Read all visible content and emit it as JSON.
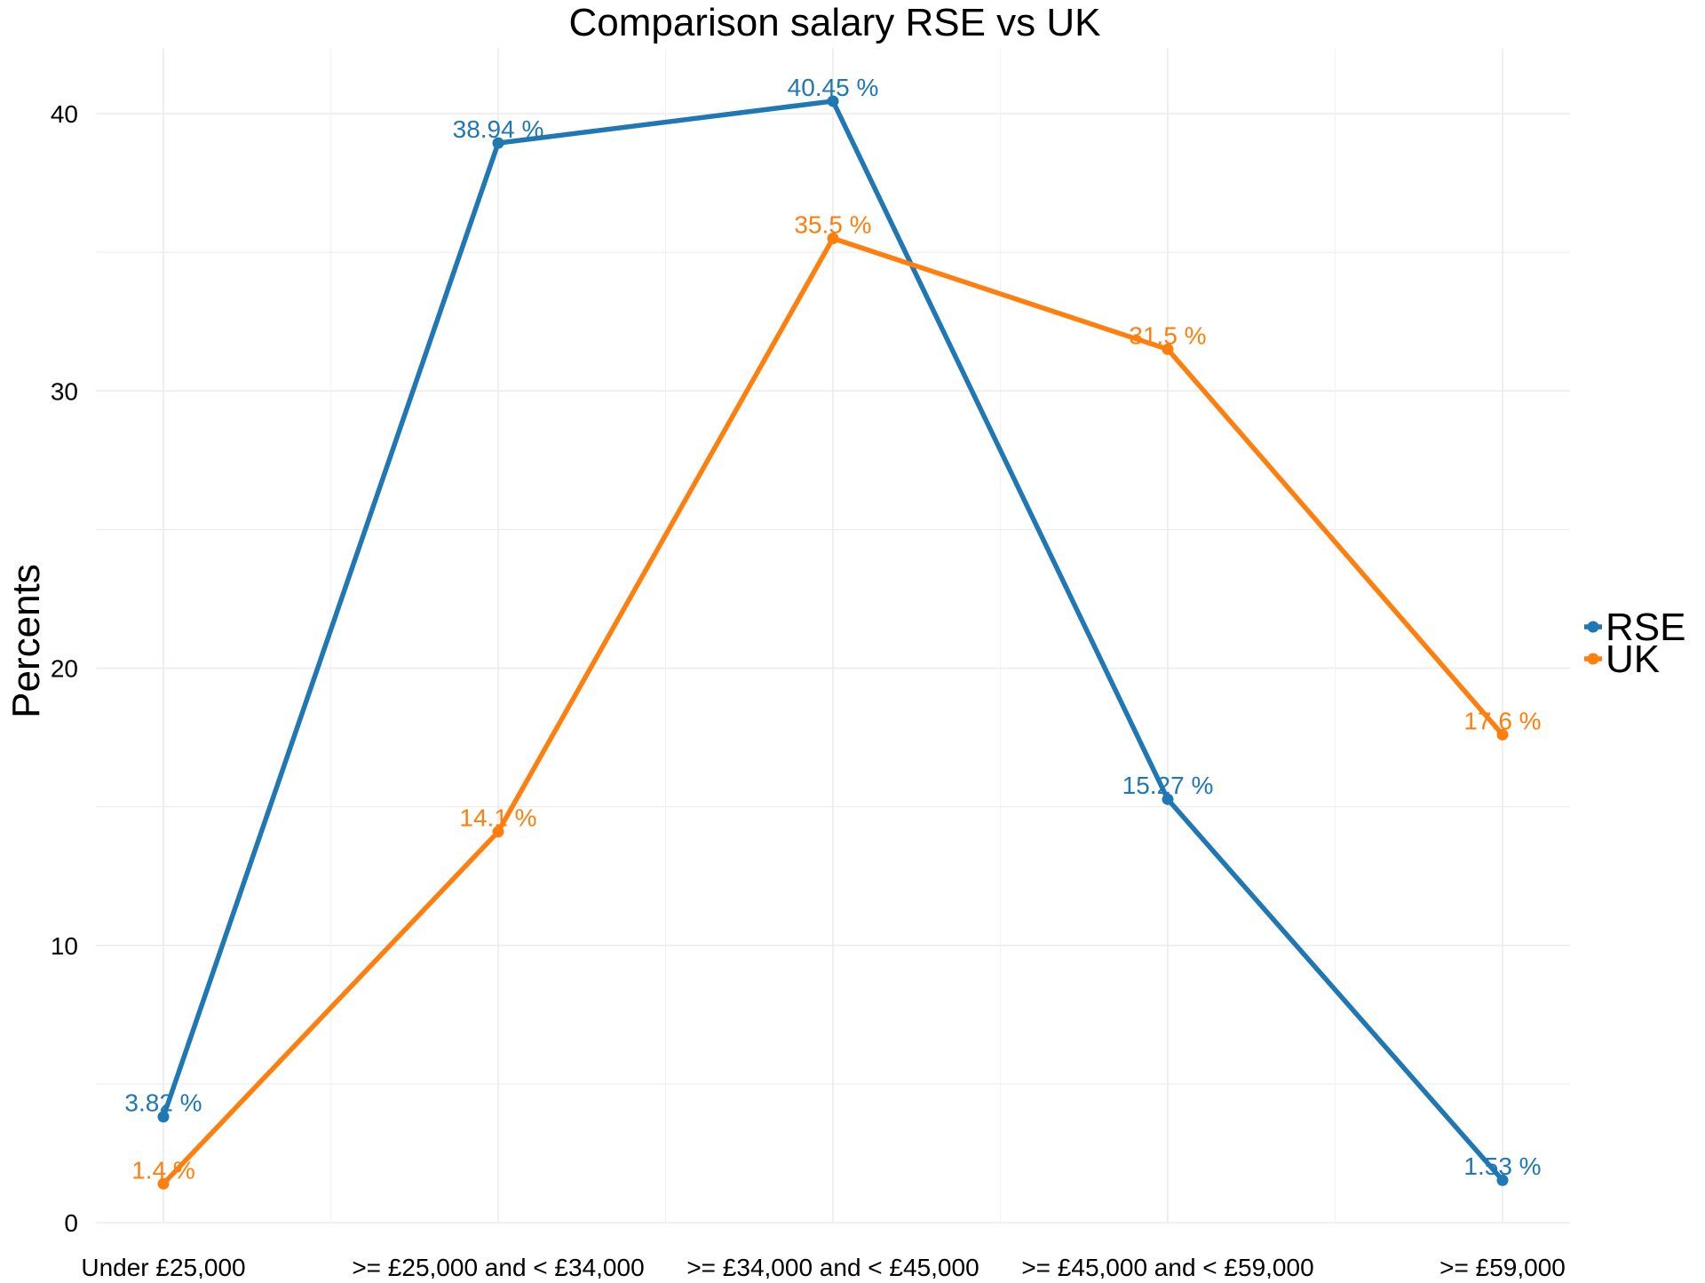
{
  "chart_data": {
    "type": "line",
    "title": "Comparison salary RSE vs UK",
    "xlabel": "",
    "ylabel": "Percents",
    "categories": [
      "Under £25,000",
      ">= £25,000 and < £34,000",
      ">= £34,000 and < £45,000",
      ">= £45,000 and < £59,000",
      ">= £59,000"
    ],
    "series": [
      {
        "name": "RSE",
        "color": "#1f77b4",
        "values": [
          3.82,
          38.94,
          40.45,
          15.27,
          1.53
        ],
        "labels": [
          "3.82 %",
          "38.94 %",
          "40.45 %",
          "15.27 %",
          "1.53 %"
        ]
      },
      {
        "name": "UK",
        "color": "#ff7f0e",
        "values": [
          1.4,
          14.1,
          35.5,
          31.5,
          17.6
        ],
        "labels": [
          "1.4 %",
          "14.1 %",
          "35.5 %",
          "31.5 %",
          "17.6 %"
        ]
      }
    ],
    "ylim": [
      0,
      42.5
    ],
    "yticks": [
      0,
      10,
      20,
      30,
      40
    ],
    "ytick_labels": [
      "0",
      "10",
      "20",
      "30",
      "40"
    ],
    "grid": true,
    "legend_position": "right"
  }
}
